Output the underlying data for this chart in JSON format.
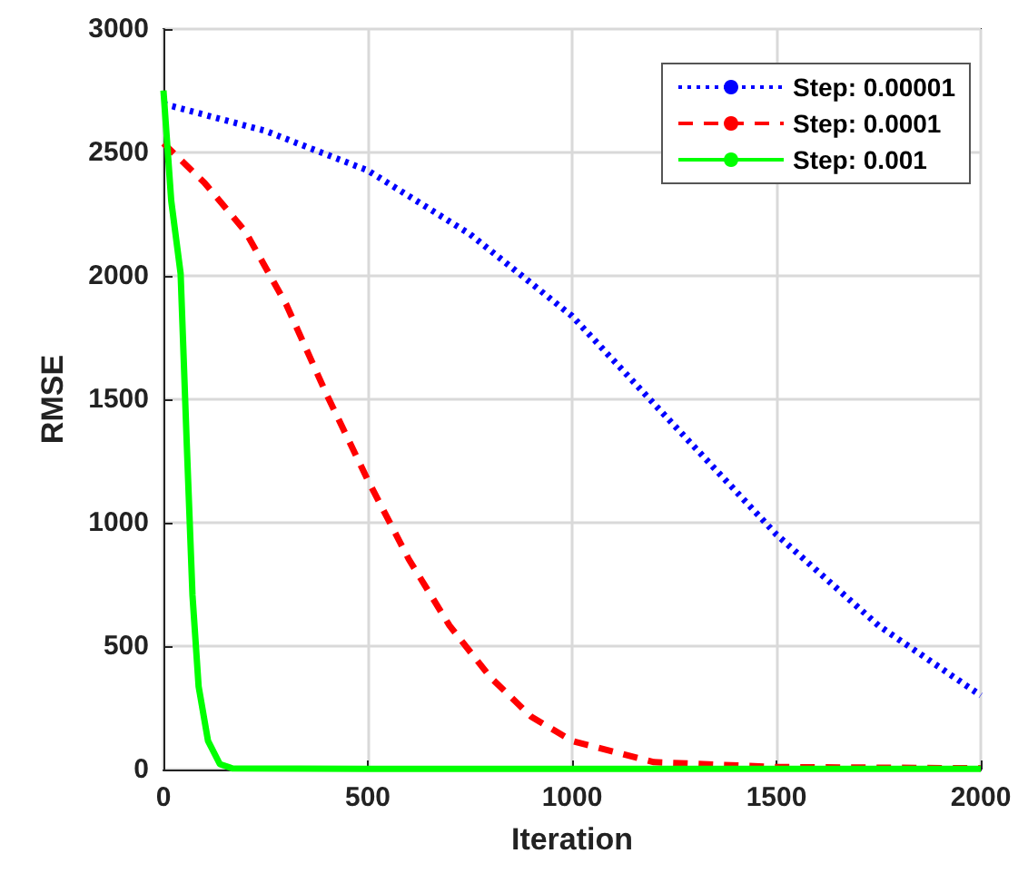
{
  "chart_data": {
    "type": "line",
    "xlabel": "Iteration",
    "ylabel": "RMSE",
    "xlim": [
      0,
      2000
    ],
    "xticks": [
      0,
      500,
      1000,
      1500,
      2000
    ],
    "ylim": [
      0,
      3000
    ],
    "yticks": [
      0,
      500,
      1000,
      1500,
      2000,
      2500,
      3000
    ],
    "grid": true,
    "legend": "top right",
    "marker": "none",
    "series": [
      {
        "name": "Step: 0.00001",
        "color": "#0000ff",
        "line_style": "dotted",
        "x": [
          0,
          250,
          500,
          750,
          1000,
          1250,
          1500,
          1750,
          2000
        ],
        "values": [
          2697,
          2587,
          2427,
          2169,
          1837,
          1394,
          952,
          583,
          300
        ]
      },
      {
        "name": "Step: 0.0001",
        "color": "#ff0000",
        "line_style": "dashed",
        "x": [
          0,
          100,
          200,
          300,
          400,
          500,
          600,
          700,
          800,
          900,
          1000,
          1200,
          1500,
          2000
        ],
        "values": [
          2537,
          2378,
          2181,
          1886,
          1517,
          1173,
          853,
          583,
          374,
          214,
          116,
          30,
          10,
          5
        ]
      },
      {
        "name": "Step: 0.001",
        "color": "#00ff00",
        "line_style": "solid",
        "x": [
          0,
          19,
          42,
          57,
          71,
          86,
          109,
          138,
          168,
          500,
          1000,
          2000
        ],
        "values": [
          2751,
          2304,
          2009,
          1320,
          706,
          337,
          116,
          22,
          5,
          3,
          3,
          3
        ]
      }
    ]
  }
}
